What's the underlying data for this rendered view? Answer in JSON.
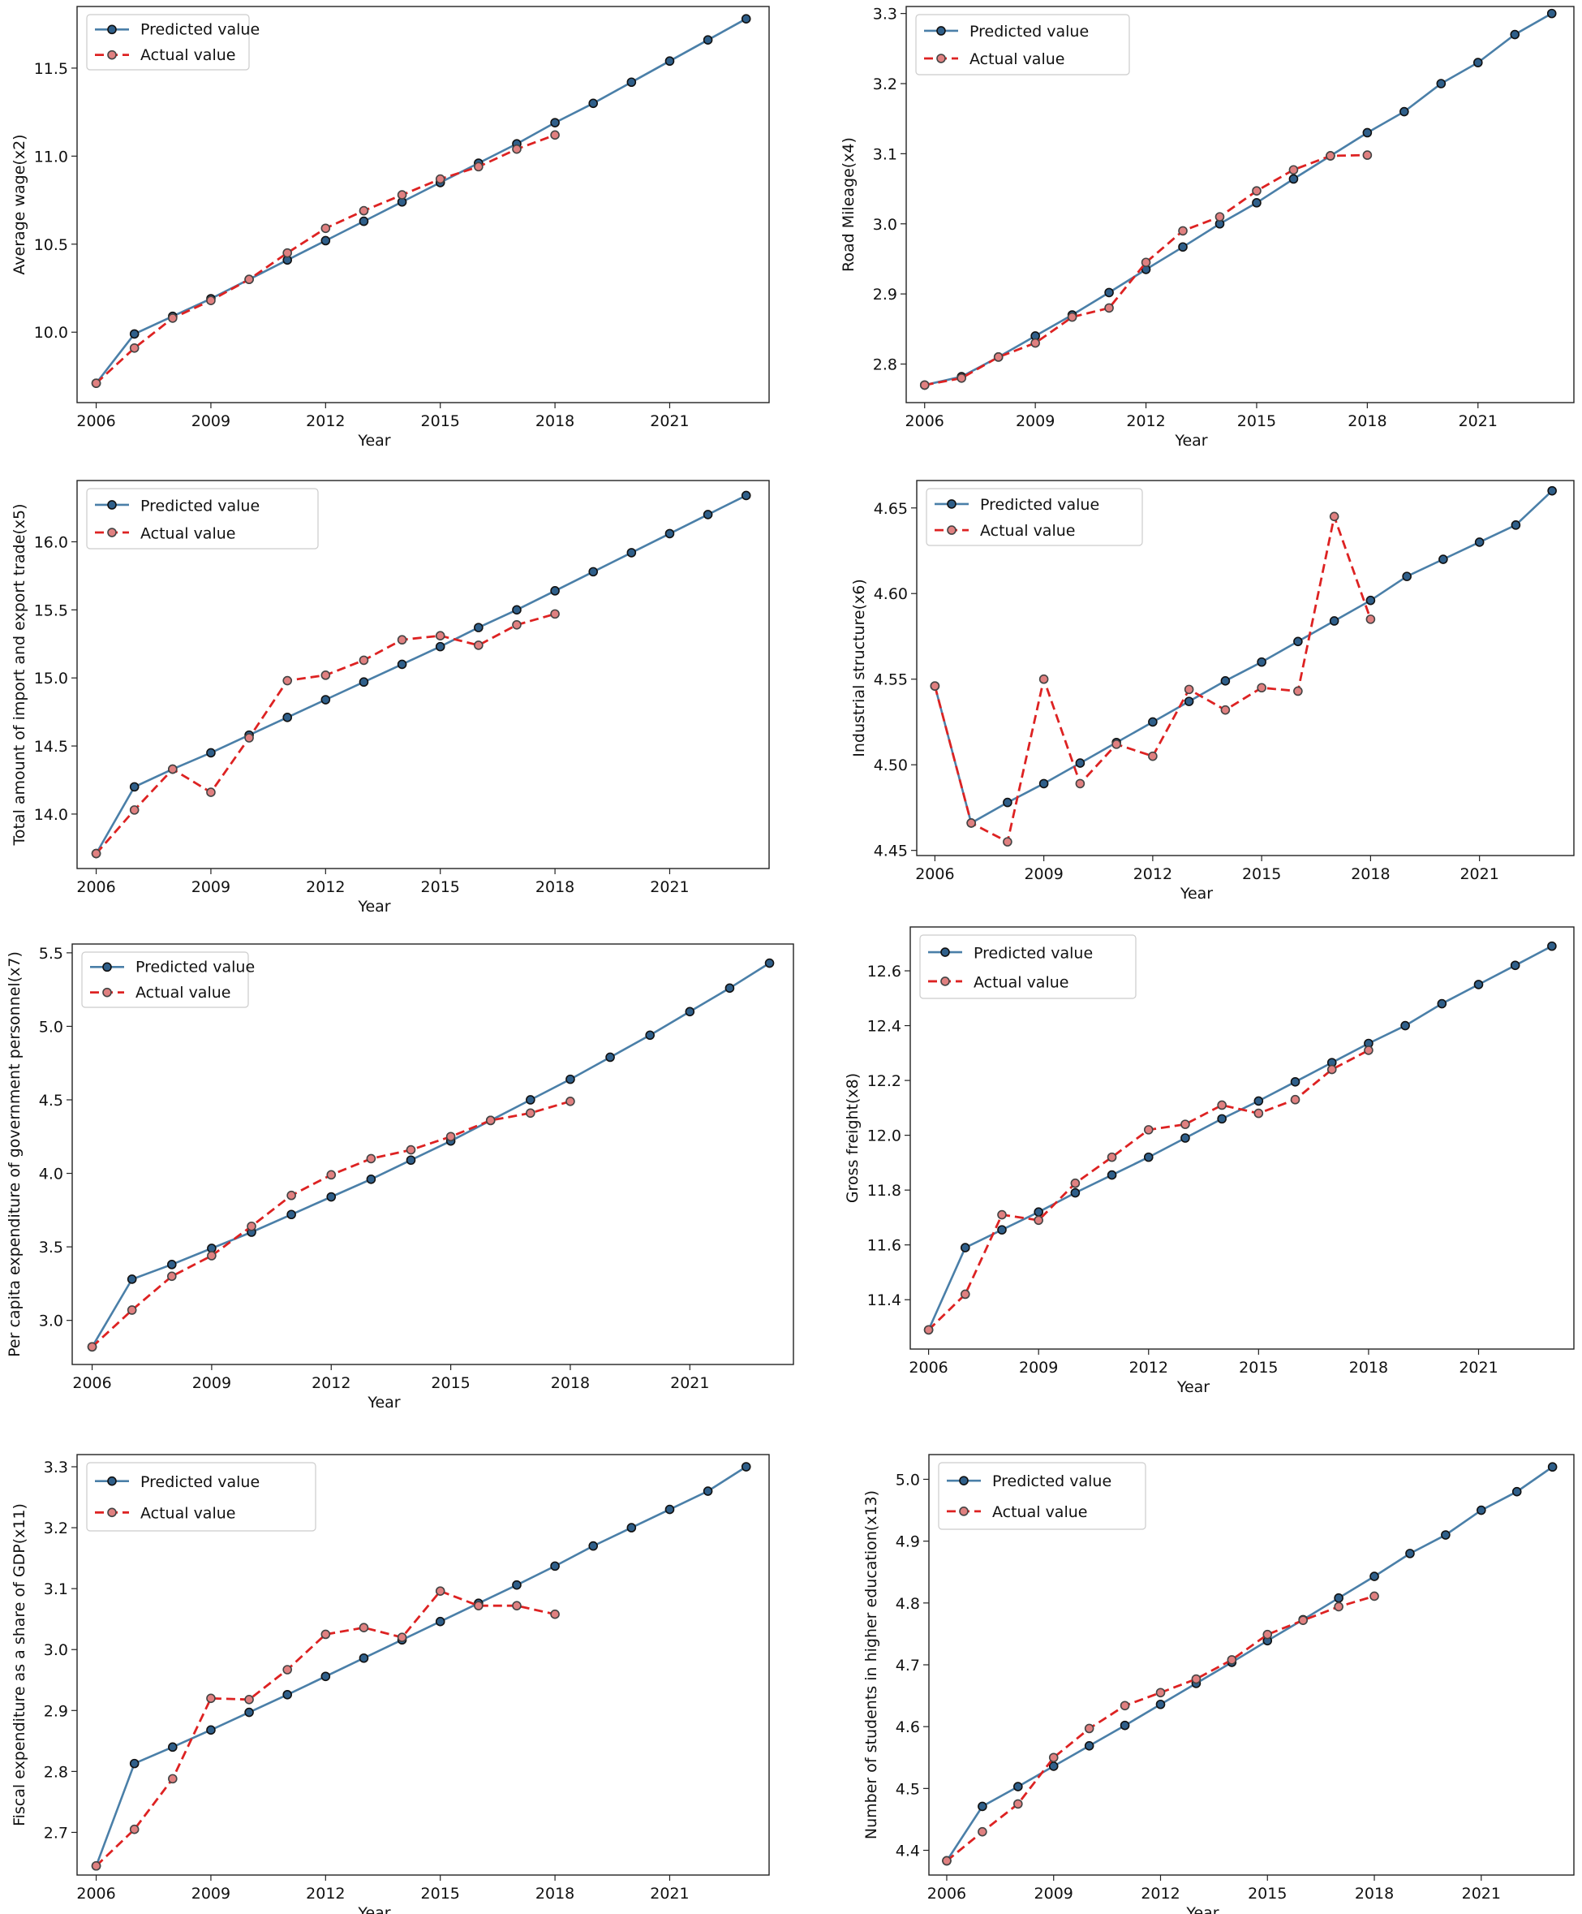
{
  "colors": {
    "predicted": "#4a7fa8",
    "actual": "#dd2222"
  },
  "chart_data": [
    {
      "type": "line",
      "title": "",
      "xlabel": "Year",
      "ylabel": "Average wage(x2)",
      "xticks": [
        2006,
        2009,
        2012,
        2015,
        2018,
        2021
      ],
      "yticks": [
        "10.0",
        "10.5",
        "11.0",
        "11.5"
      ],
      "ylim": [
        9.6,
        11.85
      ],
      "legend": "top-left",
      "series": [
        {
          "name": "Predicted value",
          "x": [
            2006,
            2007,
            2008,
            2009,
            2010,
            2011,
            2012,
            2013,
            2014,
            2015,
            2016,
            2017,
            2018,
            2019,
            2020,
            2021,
            2022,
            2023
          ],
          "values": [
            9.71,
            9.99,
            10.09,
            10.19,
            10.3,
            10.41,
            10.52,
            10.63,
            10.74,
            10.85,
            10.96,
            11.07,
            11.19,
            11.3,
            11.42,
            11.54,
            11.66,
            11.78
          ]
        },
        {
          "name": "Actual value",
          "x": [
            2006,
            2007,
            2008,
            2009,
            2010,
            2011,
            2012,
            2013,
            2014,
            2015,
            2016,
            2017,
            2018
          ],
          "values": [
            9.71,
            9.91,
            10.08,
            10.18,
            10.3,
            10.45,
            10.59,
            10.69,
            10.78,
            10.87,
            10.94,
            11.04,
            11.12
          ]
        }
      ]
    },
    {
      "type": "line",
      "title": "",
      "xlabel": "Year",
      "ylabel": "Road Mileage(x4)",
      "xticks": [
        2006,
        2009,
        2012,
        2015,
        2018,
        2021
      ],
      "yticks": [
        "2.8",
        "2.9",
        "3.0",
        "3.1",
        "3.2",
        "3.3"
      ],
      "ylim": [
        2.745,
        3.31
      ],
      "legend": "top-left",
      "series": [
        {
          "name": "Predicted value",
          "x": [
            2006,
            2007,
            2008,
            2009,
            2010,
            2011,
            2012,
            2013,
            2014,
            2015,
            2016,
            2017,
            2018,
            2019,
            2020,
            2021,
            2022,
            2023
          ],
          "values": [
            2.77,
            2.782,
            2.81,
            2.84,
            2.87,
            2.902,
            2.935,
            2.967,
            3.0,
            3.03,
            3.064,
            3.097,
            3.13,
            3.16,
            3.2,
            3.23,
            3.27,
            3.3
          ]
        },
        {
          "name": "Actual value",
          "x": [
            2006,
            2007,
            2008,
            2009,
            2010,
            2011,
            2012,
            2013,
            2014,
            2015,
            2016,
            2017,
            2018
          ],
          "values": [
            2.77,
            2.78,
            2.81,
            2.83,
            2.867,
            2.88,
            2.945,
            2.99,
            3.01,
            3.047,
            3.077,
            3.097,
            3.098
          ]
        }
      ]
    },
    {
      "type": "line",
      "title": "",
      "xlabel": "Year",
      "ylabel": "Total amount of import and export trade(x5)",
      "xticks": [
        2006,
        2009,
        2012,
        2015,
        2018,
        2021
      ],
      "yticks": [
        "14.0",
        "14.5",
        "15.0",
        "15.5",
        "16.0"
      ],
      "ylim": [
        13.6,
        16.45
      ],
      "legend": "top-left",
      "series": [
        {
          "name": "Predicted value",
          "x": [
            2006,
            2007,
            2008,
            2009,
            2010,
            2011,
            2012,
            2013,
            2014,
            2015,
            2016,
            2017,
            2018,
            2019,
            2020,
            2021,
            2022,
            2023
          ],
          "values": [
            13.71,
            14.2,
            14.33,
            14.45,
            14.58,
            14.71,
            14.84,
            14.97,
            15.1,
            15.23,
            15.37,
            15.5,
            15.64,
            15.78,
            15.92,
            16.06,
            16.2,
            16.34
          ]
        },
        {
          "name": "Actual value",
          "x": [
            2006,
            2007,
            2008,
            2009,
            2010,
            2011,
            2012,
            2013,
            2014,
            2015,
            2016,
            2017,
            2018
          ],
          "values": [
            13.71,
            14.03,
            14.33,
            14.16,
            14.56,
            14.98,
            15.02,
            15.13,
            15.28,
            15.31,
            15.24,
            15.39,
            15.47
          ]
        }
      ]
    },
    {
      "type": "line",
      "title": "",
      "xlabel": "Year",
      "ylabel": "Industrial structure(x6)",
      "xticks": [
        2006,
        2009,
        2012,
        2015,
        2018,
        2021
      ],
      "yticks": [
        "4.45",
        "4.50",
        "4.55",
        "4.60",
        "4.65"
      ],
      "ylim": [
        4.447,
        4.666
      ],
      "legend": "top-left",
      "series": [
        {
          "name": "Predicted value",
          "x": [
            2006,
            2007,
            2008,
            2009,
            2010,
            2011,
            2012,
            2013,
            2014,
            2015,
            2016,
            2017,
            2018,
            2019,
            2020,
            2021,
            2022,
            2023
          ],
          "values": [
            4.546,
            4.466,
            4.478,
            4.489,
            4.501,
            4.513,
            4.525,
            4.537,
            4.549,
            4.56,
            4.572,
            4.584,
            4.596,
            4.61,
            4.62,
            4.63,
            4.64,
            4.66
          ]
        },
        {
          "name": "Actual value",
          "x": [
            2006,
            2007,
            2008,
            2009,
            2010,
            2011,
            2012,
            2013,
            2014,
            2015,
            2016,
            2017,
            2018
          ],
          "values": [
            4.546,
            4.466,
            4.455,
            4.55,
            4.489,
            4.512,
            4.505,
            4.544,
            4.532,
            4.545,
            4.543,
            4.645,
            4.585
          ]
        }
      ]
    },
    {
      "type": "line",
      "title": "",
      "xlabel": "Year",
      "ylabel": "Per capita expenditure of government personnel(x7)",
      "xticks": [
        2006,
        2009,
        2012,
        2015,
        2018,
        2021
      ],
      "yticks": [
        "3.0",
        "3.5",
        "4.0",
        "4.5",
        "5.0",
        "5.5"
      ],
      "ylim": [
        2.7,
        5.56
      ],
      "legend": "top-left",
      "series": [
        {
          "name": "Predicted value",
          "x": [
            2006,
            2007,
            2008,
            2009,
            2010,
            2011,
            2012,
            2013,
            2014,
            2015,
            2016,
            2017,
            2018,
            2019,
            2020,
            2021,
            2022,
            2023
          ],
          "values": [
            2.82,
            3.28,
            3.38,
            3.49,
            3.6,
            3.72,
            3.84,
            3.96,
            4.09,
            4.22,
            4.36,
            4.5,
            4.64,
            4.79,
            4.94,
            5.1,
            5.26,
            5.43
          ]
        },
        {
          "name": "Actual value",
          "x": [
            2006,
            2007,
            2008,
            2009,
            2010,
            2011,
            2012,
            2013,
            2014,
            2015,
            2016,
            2017,
            2018
          ],
          "values": [
            2.82,
            3.07,
            3.3,
            3.44,
            3.64,
            3.85,
            3.99,
            4.1,
            4.16,
            4.25,
            4.36,
            4.41,
            4.49
          ]
        }
      ]
    },
    {
      "type": "line",
      "title": "",
      "xlabel": "Year",
      "ylabel": "Gross freight(x8)",
      "xticks": [
        2006,
        2009,
        2012,
        2015,
        2018,
        2021
      ],
      "yticks": [
        "11.4",
        "11.6",
        "11.8",
        "12.0",
        "12.2",
        "12.4",
        "12.6"
      ],
      "ylim": [
        11.22,
        12.76
      ],
      "legend": "top-left",
      "series": [
        {
          "name": "Predicted value",
          "x": [
            2006,
            2007,
            2008,
            2009,
            2010,
            2011,
            2012,
            2013,
            2014,
            2015,
            2016,
            2017,
            2018,
            2019,
            2020,
            2021,
            2022,
            2023
          ],
          "values": [
            11.29,
            11.59,
            11.655,
            11.72,
            11.79,
            11.855,
            11.92,
            11.99,
            12.06,
            12.125,
            12.195,
            12.265,
            12.335,
            12.4,
            12.48,
            12.55,
            12.62,
            12.69
          ]
        },
        {
          "name": "Actual value",
          "x": [
            2006,
            2007,
            2008,
            2009,
            2010,
            2011,
            2012,
            2013,
            2014,
            2015,
            2016,
            2017,
            2018
          ],
          "values": [
            11.29,
            11.42,
            11.71,
            11.69,
            11.825,
            11.92,
            12.02,
            12.04,
            12.11,
            12.08,
            12.13,
            12.24,
            12.31
          ]
        }
      ]
    },
    {
      "type": "line",
      "title": "",
      "xlabel": "Year",
      "ylabel": "Fiscal expenditure as a share of GDP(x11)",
      "xticks": [
        2006,
        2009,
        2012,
        2015,
        2018,
        2021
      ],
      "yticks": [
        "2.7",
        "2.8",
        "2.9",
        "3.0",
        "3.1",
        "3.2",
        "3.3"
      ],
      "ylim": [
        2.63,
        3.32
      ],
      "legend": "top-left",
      "series": [
        {
          "name": "Predicted value",
          "x": [
            2006,
            2007,
            2008,
            2009,
            2010,
            2011,
            2012,
            2013,
            2014,
            2015,
            2016,
            2017,
            2018,
            2019,
            2020,
            2021,
            2022,
            2023
          ],
          "values": [
            2.645,
            2.813,
            2.84,
            2.868,
            2.897,
            2.926,
            2.956,
            2.986,
            3.016,
            3.046,
            3.076,
            3.106,
            3.137,
            3.17,
            3.2,
            3.23,
            3.26,
            3.3
          ]
        },
        {
          "name": "Actual value",
          "x": [
            2006,
            2007,
            2008,
            2009,
            2010,
            2011,
            2012,
            2013,
            2014,
            2015,
            2016,
            2017,
            2018
          ],
          "values": [
            2.645,
            2.705,
            2.788,
            2.92,
            2.918,
            2.967,
            3.025,
            3.036,
            3.02,
            3.096,
            3.072,
            3.072,
            3.058
          ]
        }
      ]
    },
    {
      "type": "line",
      "title": "",
      "xlabel": "Year",
      "ylabel": "Number of students in higher education(x13)",
      "xticks": [
        2006,
        2009,
        2012,
        2015,
        2018,
        2021
      ],
      "yticks": [
        "4.4",
        "4.5",
        "4.6",
        "4.7",
        "4.8",
        "4.9",
        "5.0"
      ],
      "ylim": [
        4.36,
        5.04
      ],
      "legend": "top-left",
      "series": [
        {
          "name": "Predicted value",
          "x": [
            2006,
            2007,
            2008,
            2009,
            2010,
            2011,
            2012,
            2013,
            2014,
            2015,
            2016,
            2017,
            2018,
            2019,
            2020,
            2021,
            2022,
            2023
          ],
          "values": [
            4.383,
            4.471,
            4.503,
            4.536,
            4.569,
            4.602,
            4.636,
            4.67,
            4.704,
            4.739,
            4.773,
            4.808,
            4.843,
            4.88,
            4.91,
            4.95,
            4.98,
            5.02
          ]
        },
        {
          "name": "Actual value",
          "x": [
            2006,
            2007,
            2008,
            2009,
            2010,
            2011,
            2012,
            2013,
            2014,
            2015,
            2016,
            2017,
            2018
          ],
          "values": [
            4.383,
            4.43,
            4.475,
            4.55,
            4.597,
            4.634,
            4.655,
            4.677,
            4.708,
            4.749,
            4.772,
            4.794,
            4.811
          ]
        }
      ]
    }
  ]
}
